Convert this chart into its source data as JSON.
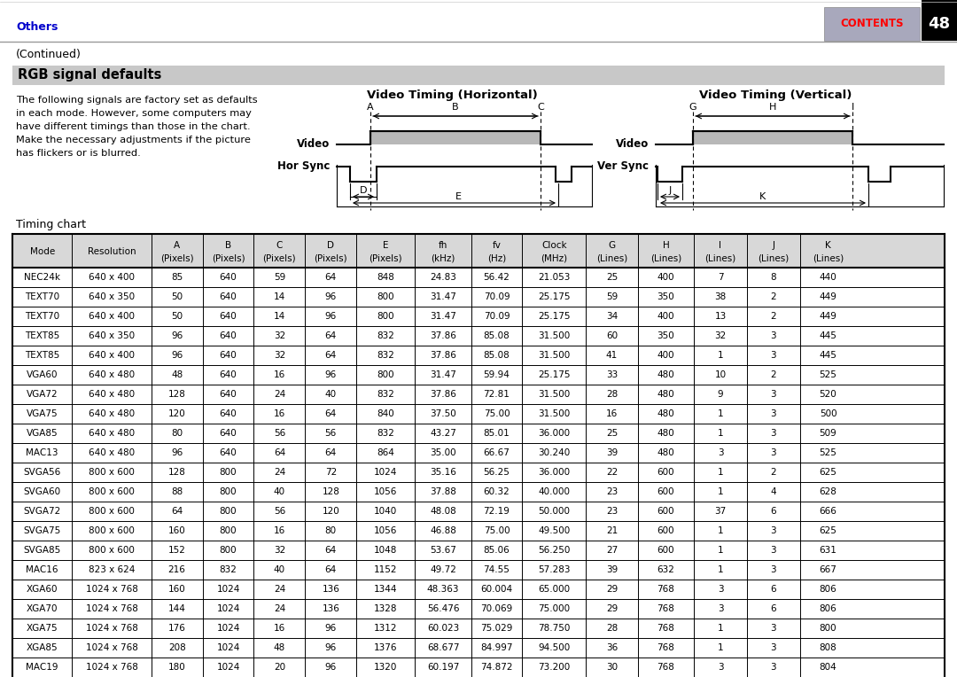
{
  "page_title": "Others",
  "page_number": "48",
  "continued": "(Continued)",
  "section_title": "RGB signal defaults",
  "description": "The following signals are factory set as defaults\nin each mode. However, some computers may\nhave different timings than those in the chart.\nMake the necessary adjustments if the picture\nhas flickers or is blurred.",
  "timing_chart_label": "Timing chart",
  "horiz_title": "Video Timing (Horizontal)",
  "vert_title": "Video Timing (Vertical)",
  "table_headers_line1": [
    "Mode",
    "Resolution",
    "A",
    "B",
    "C",
    "D",
    "E",
    "fh",
    "fv",
    "Clock",
    "G",
    "H",
    "I",
    "J",
    "K"
  ],
  "table_headers_line2": [
    "",
    "",
    "(Pixels)",
    "(Pixels)",
    "(Pixels)",
    "(Pixels)",
    "(Pixels)",
    "(kHz)",
    "(Hz)",
    "(MHz)",
    "(Lines)",
    "(Lines)",
    "(Lines)",
    "(Lines)",
    "(Lines)"
  ],
  "table_data": [
    [
      "NEC24k",
      "640 x 400",
      "85",
      "640",
      "59",
      "64",
      "848",
      "24.83",
      "56.42",
      "21.053",
      "25",
      "400",
      "7",
      "8",
      "440"
    ],
    [
      "TEXT70",
      "640 x 350",
      "50",
      "640",
      "14",
      "96",
      "800",
      "31.47",
      "70.09",
      "25.175",
      "59",
      "350",
      "38",
      "2",
      "449"
    ],
    [
      "TEXT70",
      "640 x 400",
      "50",
      "640",
      "14",
      "96",
      "800",
      "31.47",
      "70.09",
      "25.175",
      "34",
      "400",
      "13",
      "2",
      "449"
    ],
    [
      "TEXT85",
      "640 x 350",
      "96",
      "640",
      "32",
      "64",
      "832",
      "37.86",
      "85.08",
      "31.500",
      "60",
      "350",
      "32",
      "3",
      "445"
    ],
    [
      "TEXT85",
      "640 x 400",
      "96",
      "640",
      "32",
      "64",
      "832",
      "37.86",
      "85.08",
      "31.500",
      "41",
      "400",
      "1",
      "3",
      "445"
    ],
    [
      "VGA60",
      "640 x 480",
      "48",
      "640",
      "16",
      "96",
      "800",
      "31.47",
      "59.94",
      "25.175",
      "33",
      "480",
      "10",
      "2",
      "525"
    ],
    [
      "VGA72",
      "640 x 480",
      "128",
      "640",
      "24",
      "40",
      "832",
      "37.86",
      "72.81",
      "31.500",
      "28",
      "480",
      "9",
      "3",
      "520"
    ],
    [
      "VGA75",
      "640 x 480",
      "120",
      "640",
      "16",
      "64",
      "840",
      "37.50",
      "75.00",
      "31.500",
      "16",
      "480",
      "1",
      "3",
      "500"
    ],
    [
      "VGA85",
      "640 x 480",
      "80",
      "640",
      "56",
      "56",
      "832",
      "43.27",
      "85.01",
      "36.000",
      "25",
      "480",
      "1",
      "3",
      "509"
    ],
    [
      "MAC13",
      "640 x 480",
      "96",
      "640",
      "64",
      "64",
      "864",
      "35.00",
      "66.67",
      "30.240",
      "39",
      "480",
      "3",
      "3",
      "525"
    ],
    [
      "SVGA56",
      "800 x 600",
      "128",
      "800",
      "24",
      "72",
      "1024",
      "35.16",
      "56.25",
      "36.000",
      "22",
      "600",
      "1",
      "2",
      "625"
    ],
    [
      "SVGA60",
      "800 x 600",
      "88",
      "800",
      "40",
      "128",
      "1056",
      "37.88",
      "60.32",
      "40.000",
      "23",
      "600",
      "1",
      "4",
      "628"
    ],
    [
      "SVGA72",
      "800 x 600",
      "64",
      "800",
      "56",
      "120",
      "1040",
      "48.08",
      "72.19",
      "50.000",
      "23",
      "600",
      "37",
      "6",
      "666"
    ],
    [
      "SVGA75",
      "800 x 600",
      "160",
      "800",
      "16",
      "80",
      "1056",
      "46.88",
      "75.00",
      "49.500",
      "21",
      "600",
      "1",
      "3",
      "625"
    ],
    [
      "SVGA85",
      "800 x 600",
      "152",
      "800",
      "32",
      "64",
      "1048",
      "53.67",
      "85.06",
      "56.250",
      "27",
      "600",
      "1",
      "3",
      "631"
    ],
    [
      "MAC16",
      "823 x 624",
      "216",
      "832",
      "40",
      "64",
      "1152",
      "49.72",
      "74.55",
      "57.283",
      "39",
      "632",
      "1",
      "3",
      "667"
    ],
    [
      "XGA60",
      "1024 x 768",
      "160",
      "1024",
      "24",
      "136",
      "1344",
      "48.363",
      "60.004",
      "65.000",
      "29",
      "768",
      "3",
      "6",
      "806"
    ],
    [
      "XGA70",
      "1024 x 768",
      "144",
      "1024",
      "24",
      "136",
      "1328",
      "56.476",
      "70.069",
      "75.000",
      "29",
      "768",
      "3",
      "6",
      "806"
    ],
    [
      "XGA75",
      "1024 x 768",
      "176",
      "1024",
      "16",
      "96",
      "1312",
      "60.023",
      "75.029",
      "78.750",
      "28",
      "768",
      "1",
      "3",
      "800"
    ],
    [
      "XGA85",
      "1024 x 768",
      "208",
      "1024",
      "48",
      "96",
      "1376",
      "68.677",
      "84.997",
      "94.500",
      "36",
      "768",
      "1",
      "3",
      "808"
    ],
    [
      "MAC19",
      "1024 x 768",
      "180",
      "1024",
      "20",
      "96",
      "1320",
      "60.197",
      "74.872",
      "73.200",
      "30",
      "768",
      "3",
      "3",
      "804"
    ]
  ],
  "bg_color": "#ffffff",
  "header_bg": "#d8d8d8",
  "section_title_bg": "#c8c8c8",
  "table_border_color": "#000000",
  "contents_bg": "#a8a8bc",
  "contents_text_color": "#ff0000",
  "page_num_bg": "#000000",
  "page_num_color": "#ffffff",
  "others_color": "#0000cc",
  "title_color": "#000000"
}
